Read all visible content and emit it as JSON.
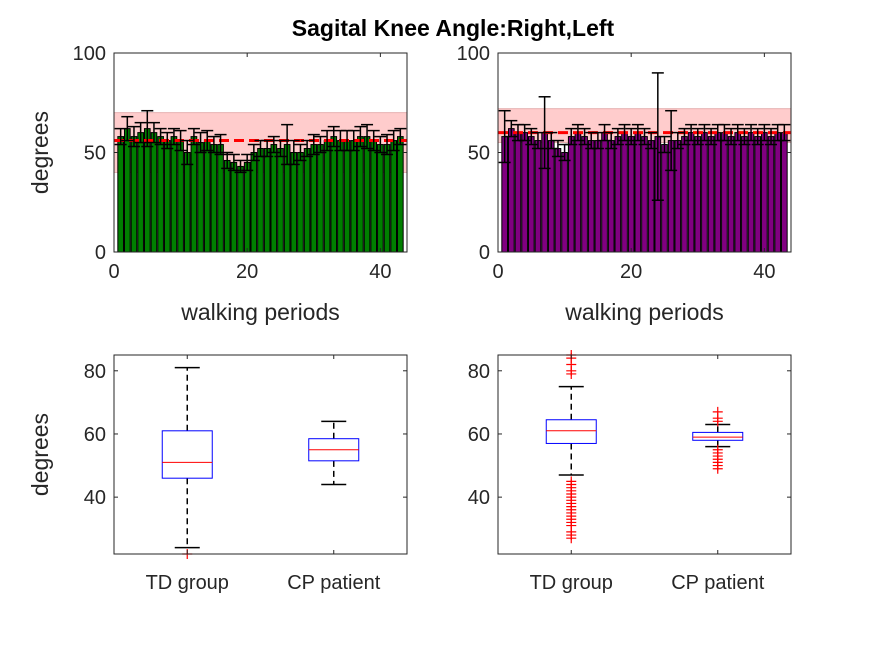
{
  "title": "Sagital Knee Angle:Right,Left",
  "colors": {
    "right_bar": "#007f00",
    "left_bar": "#800080",
    "band": "#ffcccc",
    "mean_line": "#ff0000",
    "box": "#0000ff",
    "median": "#ff0000",
    "outlier": "#ff0000"
  },
  "chart_data": [
    {
      "type": "bar",
      "name": "right",
      "xlabel": "walking periods",
      "ylabel": "degrees",
      "xlim": [
        0,
        44
      ],
      "ylim": [
        0,
        100
      ],
      "xticks": [
        0,
        20,
        40
      ],
      "yticks": [
        0,
        50,
        100
      ],
      "x": [
        1,
        2,
        3,
        4,
        5,
        6,
        7,
        8,
        9,
        10,
        11,
        12,
        13,
        14,
        15,
        16,
        17,
        18,
        19,
        20,
        21,
        22,
        23,
        24,
        25,
        26,
        27,
        28,
        29,
        30,
        31,
        32,
        33,
        34,
        35,
        36,
        37,
        38,
        39,
        40,
        41,
        42,
        43
      ],
      "values": [
        58,
        62,
        58,
        60,
        62,
        60,
        58,
        56,
        58,
        56,
        50,
        58,
        55,
        56,
        54,
        54,
        46,
        45,
        43,
        45,
        50,
        52,
        52,
        54,
        52,
        54,
        50,
        50,
        52,
        54,
        54,
        56,
        58,
        56,
        56,
        56,
        58,
        58,
        56,
        54,
        54,
        56,
        58
      ],
      "errors": [
        4,
        6,
        5,
        5,
        9,
        5,
        4,
        4,
        4,
        5,
        6,
        4,
        5,
        5,
        4,
        5,
        4,
        4,
        3,
        4,
        4,
        4,
        4,
        4,
        4,
        10,
        6,
        4,
        4,
        5,
        4,
        5,
        5,
        5,
        5,
        5,
        5,
        6,
        5,
        4,
        5,
        5,
        4
      ],
      "band": [
        40,
        70
      ],
      "mean": 56
    },
    {
      "type": "bar",
      "name": "left",
      "xlabel": "walking periods",
      "ylabel": "",
      "xlim": [
        0,
        44
      ],
      "ylim": [
        0,
        100
      ],
      "xticks": [
        0,
        20,
        40
      ],
      "yticks": [
        0,
        50,
        100
      ],
      "x": [
        1,
        2,
        3,
        4,
        5,
        6,
        7,
        8,
        9,
        10,
        11,
        12,
        13,
        14,
        15,
        16,
        17,
        18,
        19,
        20,
        21,
        22,
        23,
        24,
        25,
        26,
        27,
        28,
        29,
        30,
        31,
        32,
        33,
        34,
        35,
        36,
        37,
        38,
        39,
        40,
        41,
        42,
        43
      ],
      "values": [
        58,
        62,
        60,
        60,
        58,
        56,
        60,
        56,
        52,
        50,
        58,
        60,
        58,
        56,
        56,
        60,
        56,
        58,
        60,
        58,
        60,
        58,
        56,
        58,
        54,
        56,
        56,
        58,
        60,
        58,
        60,
        58,
        60,
        60,
        58,
        60,
        58,
        60,
        58,
        60,
        58,
        60,
        60
      ],
      "errors": [
        13,
        4,
        4,
        4,
        4,
        4,
        18,
        4,
        4,
        4,
        4,
        4,
        4,
        4,
        4,
        4,
        4,
        4,
        4,
        4,
        4,
        4,
        4,
        32,
        4,
        15,
        4,
        4,
        4,
        4,
        4,
        4,
        4,
        4,
        4,
        4,
        4,
        4,
        4,
        4,
        4,
        4,
        4
      ],
      "band": [
        55,
        72
      ],
      "mean": 60
    },
    {
      "type": "box",
      "name": "right-distribution",
      "categories": [
        "TD group",
        "CP patient"
      ],
      "ylabel": "degrees",
      "ylim": [
        22,
        85
      ],
      "yticks": [
        40,
        60,
        80
      ],
      "boxes": [
        {
          "q1": 46,
          "median": 51,
          "q3": 61,
          "whisker_low": 24,
          "whisker_high": 81,
          "outliers": [
            22
          ]
        },
        {
          "q1": 51.5,
          "median": 55,
          "q3": 58.5,
          "whisker_low": 44,
          "whisker_high": 64,
          "outliers": []
        }
      ]
    },
    {
      "type": "box",
      "name": "left-distribution",
      "categories": [
        "TD group",
        "CP patient"
      ],
      "ylabel": "",
      "ylim": [
        22,
        85
      ],
      "yticks": [
        40,
        60,
        80
      ],
      "boxes": [
        {
          "q1": 57,
          "median": 61,
          "q3": 64.5,
          "whisker_low": 47,
          "whisker_high": 75,
          "outliers": [
            27,
            28,
            29,
            31,
            32,
            33,
            34,
            35,
            36,
            37,
            38,
            39,
            40,
            41,
            42,
            43,
            44,
            45,
            79,
            80,
            82,
            84,
            85,
            86
          ]
        },
        {
          "q1": 58,
          "median": 59,
          "q3": 60.5,
          "whisker_low": 56,
          "whisker_high": 63,
          "outliers": [
            49,
            50,
            51,
            52,
            53,
            54,
            55,
            64,
            65,
            67
          ]
        }
      ]
    }
  ]
}
